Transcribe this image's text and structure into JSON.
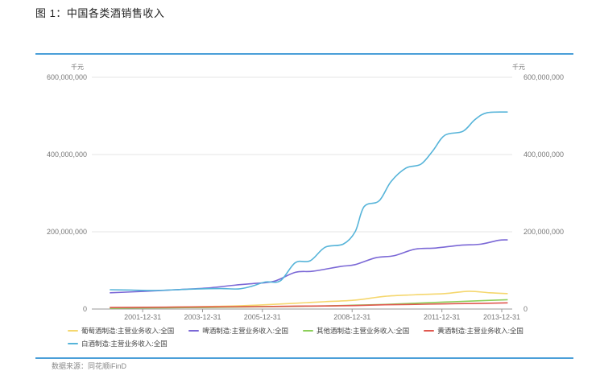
{
  "figure_title": "图 1：中国各类酒销售收入",
  "source": "数据来源：同花顺iFinD",
  "colors": {
    "rule": "#4a9fd8",
    "grid": "#e6e6e6"
  },
  "chart_data": {
    "type": "line",
    "title": "",
    "y_unit_left": "千元",
    "y_unit_right": "千元",
    "ylim": [
      0,
      600000000
    ],
    "yticks": [
      0,
      200000000,
      400000000,
      600000000
    ],
    "ytick_labels": [
      "0",
      "200,000,000",
      "400,000,000",
      "600,000,000"
    ],
    "xticks": [
      2001.9,
      2003.9,
      2005.9,
      2008.9,
      2011.9,
      2013.9
    ],
    "xtick_labels": [
      "2001-12-31",
      "2003-12-31",
      "2005-12-31",
      "2008-12-31",
      "2011-12-31",
      "2013-12-31"
    ],
    "xlim": [
      2000.2,
      2014.25
    ],
    "grid": true,
    "legend_position": "bottom",
    "series": [
      {
        "name": "葡萄酒制造:主营业务收入:全国",
        "color": "#f5d76e",
        "points": [
          [
            2000.8,
            3000000
          ],
          [
            2002,
            4000000
          ],
          [
            2003,
            5000000
          ],
          [
            2004,
            6500000
          ],
          [
            2005,
            8000000
          ],
          [
            2006,
            11000000
          ],
          [
            2007,
            15000000
          ],
          [
            2008,
            19000000
          ],
          [
            2009,
            23000000
          ],
          [
            2010,
            33000000
          ],
          [
            2011,
            37000000
          ],
          [
            2012,
            40000000
          ],
          [
            2012.8,
            46000000
          ],
          [
            2013.5,
            42000000
          ],
          [
            2014.1,
            40000000
          ]
        ]
      },
      {
        "name": "啤酒制造:主营业务收入:全国",
        "color": "#7b68d6",
        "points": [
          [
            2000.8,
            42000000
          ],
          [
            2002,
            46000000
          ],
          [
            2003,
            50000000
          ],
          [
            2004,
            54000000
          ],
          [
            2005,
            62000000
          ],
          [
            2005.6,
            66000000
          ],
          [
            2006.3,
            72000000
          ],
          [
            2007,
            95000000
          ],
          [
            2007.6,
            98000000
          ],
          [
            2008.5,
            110000000
          ],
          [
            2009,
            115000000
          ],
          [
            2009.7,
            133000000
          ],
          [
            2010.3,
            138000000
          ],
          [
            2011,
            155000000
          ],
          [
            2011.7,
            158000000
          ],
          [
            2012.5,
            165000000
          ],
          [
            2013.2,
            168000000
          ],
          [
            2013.8,
            178000000
          ],
          [
            2014.1,
            179000000
          ]
        ]
      },
      {
        "name": "其他酒制造:主营业务收入:全国",
        "color": "#8ccf5a",
        "points": [
          [
            2000.8,
            2000000
          ],
          [
            2002,
            3000000
          ],
          [
            2003,
            3500000
          ],
          [
            2004,
            4000000
          ],
          [
            2005,
            5000000
          ],
          [
            2006,
            6000000
          ],
          [
            2007,
            7000000
          ],
          [
            2008,
            8000000
          ],
          [
            2009,
            10000000
          ],
          [
            2010,
            12000000
          ],
          [
            2011,
            15000000
          ],
          [
            2012,
            18000000
          ],
          [
            2013,
            21000000
          ],
          [
            2014.1,
            24000000
          ]
        ]
      },
      {
        "name": "黄酒制造:主营业务收入:全国",
        "color": "#e0584f",
        "points": [
          [
            2000.8,
            4000000
          ],
          [
            2002,
            4500000
          ],
          [
            2003,
            5000000
          ],
          [
            2004,
            5500000
          ],
          [
            2005,
            6000000
          ],
          [
            2006,
            6500000
          ],
          [
            2007,
            7500000
          ],
          [
            2008,
            8000000
          ],
          [
            2009,
            9000000
          ],
          [
            2010,
            11000000
          ],
          [
            2011,
            12000000
          ],
          [
            2012,
            13500000
          ],
          [
            2013,
            14500000
          ],
          [
            2014.1,
            16000000
          ]
        ]
      },
      {
        "name": "白酒制造:主营业务收入:全国",
        "color": "#56b4d9",
        "points": [
          [
            2000.8,
            50000000
          ],
          [
            2001.5,
            49000000
          ],
          [
            2002.3,
            48000000
          ],
          [
            2003,
            50000000
          ],
          [
            2003.7,
            52000000
          ],
          [
            2004.5,
            53000000
          ],
          [
            2005.1,
            52000000
          ],
          [
            2005.5,
            58000000
          ],
          [
            2006,
            70000000
          ],
          [
            2006.5,
            73000000
          ],
          [
            2007,
            120000000
          ],
          [
            2007.5,
            125000000
          ],
          [
            2008,
            160000000
          ],
          [
            2008.6,
            168000000
          ],
          [
            2009,
            200000000
          ],
          [
            2009.3,
            265000000
          ],
          [
            2009.8,
            280000000
          ],
          [
            2010.2,
            330000000
          ],
          [
            2010.7,
            365000000
          ],
          [
            2011.2,
            375000000
          ],
          [
            2011.6,
            410000000
          ],
          [
            2012,
            450000000
          ],
          [
            2012.6,
            460000000
          ],
          [
            2013,
            490000000
          ],
          [
            2013.4,
            508000000
          ],
          [
            2014.1,
            510000000
          ]
        ]
      }
    ]
  }
}
